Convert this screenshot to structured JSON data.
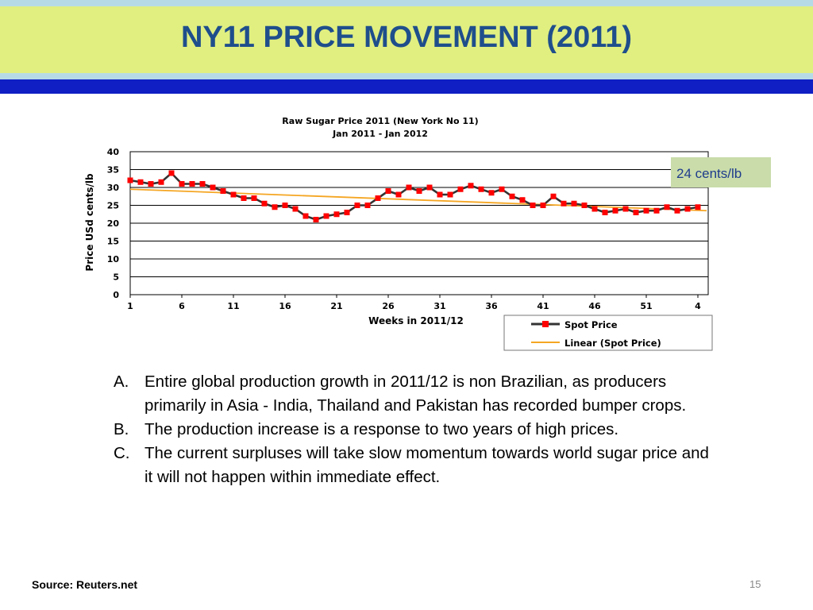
{
  "slide": {
    "title": "NY11 PRICE MOVEMENT (2011)",
    "callout": "24 cents/lb",
    "source": "Source: Reuters.net",
    "page_number": "15",
    "bullets": [
      {
        "marker": "A.",
        "text": "Entire global production growth in 2011/12 is non Brazilian, as producers primarily in Asia - India, Thailand and Pakistan has recorded bumper crops."
      },
      {
        "marker": "B.",
        "text": "The production increase is a response to two years of high prices."
      },
      {
        "marker": "C.",
        "text": "The current surpluses will take slow momentum towards world sugar price and it will not happen within immediate effect."
      }
    ],
    "colors": {
      "title": "#1f4e8c",
      "title_bar": "#e0ef80",
      "accent_band": "#0f1fc4",
      "callout_bg": "#c9dcaa",
      "spot_line": "#333333",
      "spot_marker": "#ff0000",
      "trend_line": "#f5a623"
    }
  },
  "chart_data": {
    "type": "line",
    "title": "Raw Sugar Price 2011 (New York No 11)",
    "subtitle": "Jan 2011 - Jan 2012",
    "xlabel": "Weeks in 2011/12",
    "ylabel": "Price USd cents/lb",
    "ylim": [
      0,
      40
    ],
    "yticks": [
      0,
      5,
      10,
      15,
      20,
      25,
      30,
      35,
      40
    ],
    "xtick_labels": [
      "1",
      "6",
      "11",
      "16",
      "21",
      "26",
      "31",
      "36",
      "41",
      "46",
      "51",
      "4"
    ],
    "xtick_step": 5,
    "grid": true,
    "legend_position": "bottom-right",
    "series": [
      {
        "name": "Spot Price",
        "values": [
          32,
          31.5,
          31,
          31.5,
          34,
          31,
          31,
          31,
          30,
          29,
          28,
          27,
          27,
          25.5,
          24.5,
          25,
          24,
          22,
          21,
          22,
          22.5,
          23,
          25,
          25,
          27,
          29,
          28,
          30,
          29,
          30,
          28,
          28,
          29.5,
          30.5,
          29.5,
          28.5,
          29.5,
          27.5,
          26.5,
          25,
          25,
          27.5,
          25.5,
          25.5,
          25,
          24,
          23,
          23.5,
          24,
          23,
          23.5,
          23.5,
          24.5,
          23.5,
          24,
          24.5
        ]
      },
      {
        "name": "Linear (Spot Price)",
        "values": [
          29.5,
          23.5
        ]
      }
    ]
  }
}
